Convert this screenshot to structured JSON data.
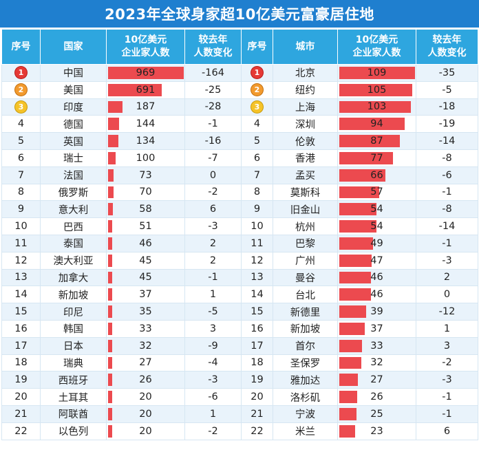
{
  "title": "2023年全球身家超10亿美元富豪居住地",
  "headers": {
    "rank": "序号",
    "country": "国家",
    "country_count": "10亿美元\n企业家人数",
    "country_change": "较去年\n人数变化",
    "rank2": "序号",
    "city": "城市",
    "city_count": "10亿美元\n企业家人数",
    "city_change": "较去年\n人数变化"
  },
  "colors": {
    "title_bg": "#1f7fcf",
    "header_bg": "#2ea6df",
    "bar": "#ec4a4f",
    "row_alt": "#e9f3fb",
    "medal_1": "#e53935",
    "medal_2": "#f29a2e",
    "medal_3": "#f5c329"
  },
  "chart_data": [
    {
      "type": "bar",
      "categories": [
        "中国",
        "美国",
        "印度",
        "德国",
        "英国",
        "瑞士",
        "法国",
        "俄罗斯",
        "意大利",
        "巴西",
        "泰国",
        "澳大利亚",
        "加拿大",
        "新加坡",
        "印尼",
        "韩国",
        "日本",
        "瑞典",
        "西班牙",
        "土耳其",
        "阿联酋",
        "以色列"
      ],
      "ranks": [
        "1",
        "2",
        "3",
        "4",
        "5",
        "6",
        "7",
        "8",
        "9",
        "10",
        "11",
        "12",
        "13",
        "14",
        "15",
        "16",
        "17",
        "18",
        "19",
        "20",
        "21",
        "22"
      ],
      "values": [
        969,
        691,
        187,
        144,
        134,
        100,
        73,
        70,
        58,
        51,
        46,
        45,
        45,
        37,
        35,
        33,
        32,
        27,
        26,
        20,
        20,
        20
      ],
      "changes": [
        "-164",
        "-25",
        "-28",
        "-1",
        "-16",
        "-7",
        "0",
        "-2",
        "6",
        "-3",
        "2",
        "2",
        "-1",
        "1",
        "-5",
        "3",
        "-9",
        "-4",
        "-3",
        "-6",
        "1",
        "-2"
      ]
    },
    {
      "type": "bar",
      "categories": [
        "北京",
        "纽约",
        "上海",
        "深圳",
        "伦敦",
        "香港",
        "孟买",
        "莫斯科",
        "旧金山",
        "杭州",
        "巴黎",
        "广州",
        "曼谷",
        "台北",
        "新德里",
        "新加坡",
        "首尔",
        "圣保罗",
        "雅加达",
        "洛杉矶",
        "宁波",
        "米兰"
      ],
      "ranks": [
        "1",
        "2",
        "3",
        "4",
        "5",
        "6",
        "7",
        "8",
        "9",
        "10",
        "11",
        "12",
        "13",
        "14",
        "15",
        "16",
        "17",
        "18",
        "19",
        "20",
        "21",
        "22"
      ],
      "values": [
        109,
        105,
        103,
        94,
        87,
        77,
        66,
        57,
        54,
        54,
        49,
        47,
        46,
        46,
        39,
        37,
        33,
        32,
        27,
        26,
        25,
        23
      ],
      "changes": [
        "-35",
        "-5",
        "-18",
        "-19",
        "-14",
        "-8",
        "-6",
        "-1",
        "-8",
        "-14",
        "-1",
        "-3",
        "2",
        "0",
        "-12",
        "1",
        "3",
        "-2",
        "-3",
        "-1",
        "-1",
        "6"
      ]
    }
  ]
}
